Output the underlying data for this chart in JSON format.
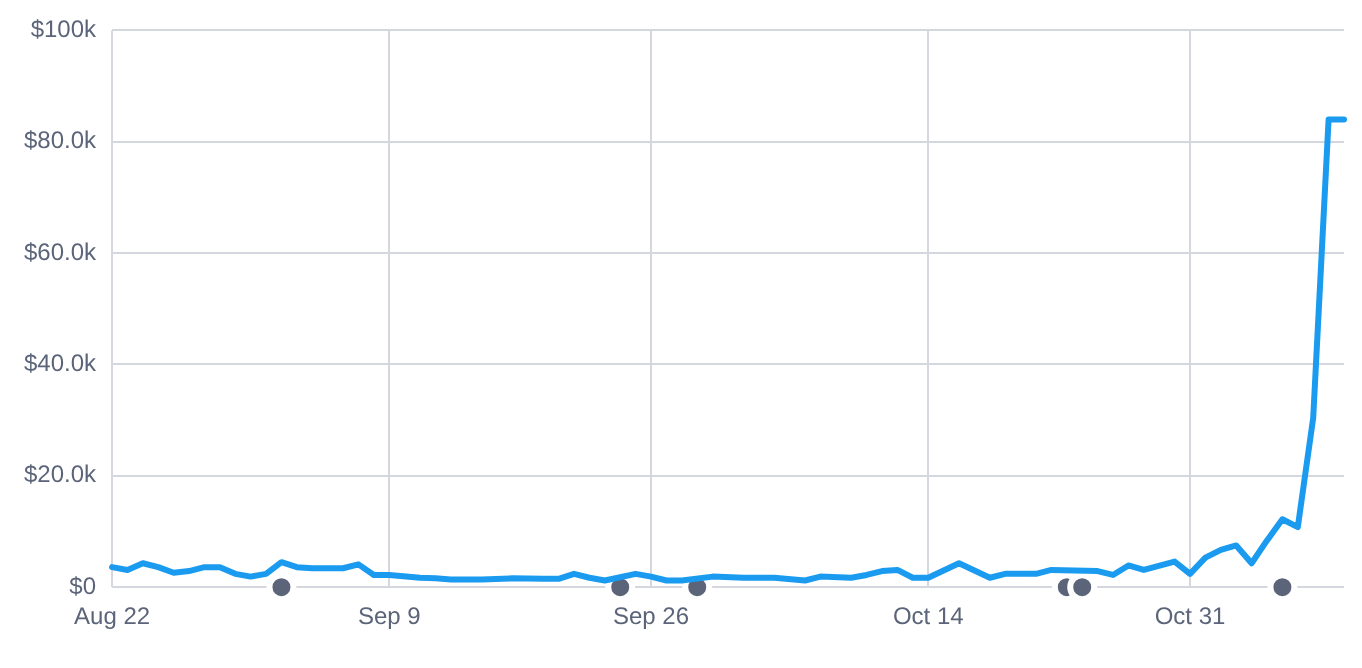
{
  "chart_data": {
    "type": "line",
    "x": [
      "--08-22",
      "--08-23",
      "--08-24",
      "--08-25",
      "--08-26",
      "--08-27",
      "--08-28",
      "--08-29",
      "--08-30",
      "--08-31",
      "--09-01",
      "--09-02",
      "--09-03",
      "--09-04",
      "--09-05",
      "--09-06",
      "--09-07",
      "--09-08",
      "--09-09",
      "--09-11",
      "--09-12",
      "--09-13",
      "--09-15",
      "--09-17",
      "--09-19",
      "--09-20",
      "--09-21",
      "--09-22",
      "--09-23",
      "--09-25",
      "--09-26",
      "--09-27",
      "--09-28",
      "--09-30",
      "--10-02",
      "--10-04",
      "--10-06",
      "--10-07",
      "--10-09",
      "--10-10",
      "--10-11",
      "--10-12",
      "--10-13",
      "--10-14",
      "--10-16",
      "--10-18",
      "--10-19",
      "--10-21",
      "--10-22",
      "--10-25",
      "--10-26",
      "--10-27",
      "--10-28",
      "--10-30",
      "--10-31",
      "--11-01",
      "--11-02",
      "--11-03",
      "--11-04",
      "--11-05",
      "--11-06",
      "--11-07",
      "--11-08",
      "--11-09",
      "--11-10"
    ],
    "series": [
      {
        "color": "#1a9bf0",
        "marker": "none",
        "values": [
          3600,
          3100,
          4300,
          3600,
          2600,
          2900,
          3600,
          3600,
          2400,
          1900,
          2400,
          4500,
          3600,
          3400,
          3400,
          3400,
          4100,
          2200,
          2200,
          1700,
          1600,
          1400,
          1400,
          1600,
          1500,
          1500,
          2400,
          1700,
          1200,
          2400,
          1900,
          1200,
          1200,
          1900,
          1700,
          1700,
          1200,
          1900,
          1700,
          2200,
          2900,
          3100,
          1700,
          1700,
          4300,
          1700,
          2400,
          2400,
          3100,
          2900,
          2200,
          3900,
          3100,
          4600,
          2400,
          5300,
          6700,
          7500,
          4300,
          8400,
          12200,
          10800,
          30400,
          84000,
          84000
        ]
      },
      {
        "type": "scatter",
        "color": "#5b6478",
        "marker": "circle",
        "x": [
          "--09-02",
          "--09-24",
          "--09-29",
          "--10-23",
          "--10-24",
          "--11-06"
        ],
        "values": [
          0,
          0,
          0,
          0,
          0,
          0
        ]
      }
    ],
    "xlim": [
      "--08-22",
      "--11-10"
    ],
    "xticks": [
      {
        "value": "--08-22",
        "label": "Aug 22"
      },
      {
        "value": "--09-09",
        "label": "Sep 9"
      },
      {
        "value": "--09-26",
        "label": "Sep 26"
      },
      {
        "value": "--10-14",
        "label": "Oct 14"
      },
      {
        "value": "--10-31",
        "label": "Oct 31"
      }
    ],
    "ylim": [
      0,
      100000
    ],
    "yticks": [
      {
        "value": 0,
        "label": "$0"
      },
      {
        "value": 20000,
        "label": "$20.0k"
      },
      {
        "value": 40000,
        "label": "$40.0k"
      },
      {
        "value": 60000,
        "label": "$60.0k"
      },
      {
        "value": 80000,
        "label": "$80.0k"
      },
      {
        "value": 100000,
        "label": "$100k"
      }
    ],
    "grid": true,
    "legend": false
  }
}
